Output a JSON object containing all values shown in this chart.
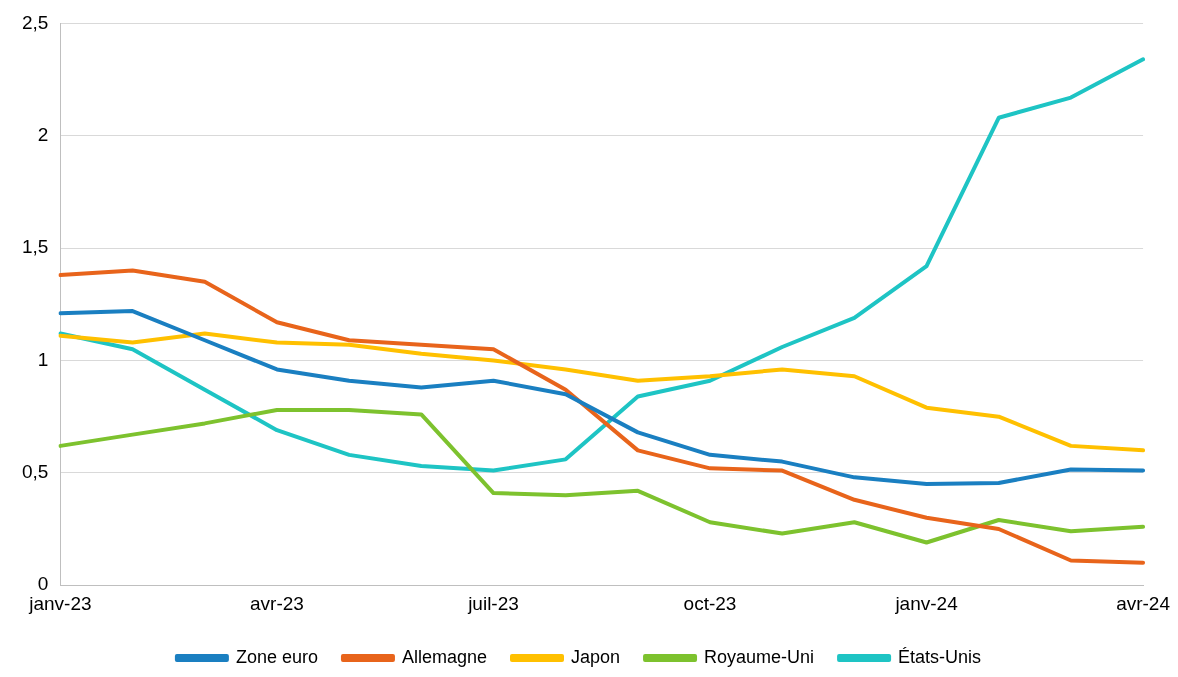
{
  "chart_data": {
    "type": "line",
    "categories": [
      "janv-23",
      null,
      null,
      "avr-23",
      null,
      null,
      "juil-23",
      null,
      null,
      "oct-23",
      null,
      null,
      "janv-24",
      null,
      null,
      "avr-24"
    ],
    "series": [
      {
        "name": "Zone euro",
        "color": "#1a7fc1",
        "values": [
          1.21,
          1.22,
          1.09,
          0.96,
          0.91,
          0.88,
          0.91,
          0.85,
          0.68,
          0.58,
          0.55,
          0.48,
          0.45,
          0.455,
          0.515,
          0.51
        ]
      },
      {
        "name": "Allemagne",
        "color": "#e8641b",
        "values": [
          1.38,
          1.4,
          1.35,
          1.17,
          1.09,
          1.07,
          1.05,
          0.87,
          0.6,
          0.52,
          0.51,
          0.38,
          0.3,
          0.25,
          0.11,
          0.1
        ]
      },
      {
        "name": "Japon",
        "color": "#ffc000",
        "values": [
          1.11,
          1.08,
          1.12,
          1.08,
          1.07,
          1.03,
          1.0,
          0.96,
          0.91,
          0.93,
          0.96,
          0.93,
          0.79,
          0.75,
          0.62,
          0.6
        ]
      },
      {
        "name": "Royaume-Uni",
        "color": "#7dc22e",
        "values": [
          0.62,
          0.67,
          0.72,
          0.78,
          0.78,
          0.76,
          0.41,
          0.4,
          0.42,
          0.28,
          0.23,
          0.28,
          0.19,
          0.29,
          0.24,
          0.26
        ]
      },
      {
        "name": "États-Unis",
        "color": "#1ec4c4",
        "values": [
          1.12,
          1.05,
          0.87,
          0.69,
          0.58,
          0.53,
          0.51,
          0.56,
          0.84,
          0.91,
          1.06,
          1.19,
          1.42,
          2.08,
          2.17,
          2.34
        ]
      }
    ],
    "ylim": [
      0,
      2.5
    ],
    "yticks": [
      0,
      {
        "value": 0.5,
        "label": "0,5"
      },
      1,
      {
        "value": 1.5,
        "label": "1,5"
      },
      2,
      {
        "value": 2.5,
        "label": "2,5"
      }
    ],
    "grid": "y",
    "legend": "bottom",
    "marker": "none",
    "line_style": "solid"
  }
}
